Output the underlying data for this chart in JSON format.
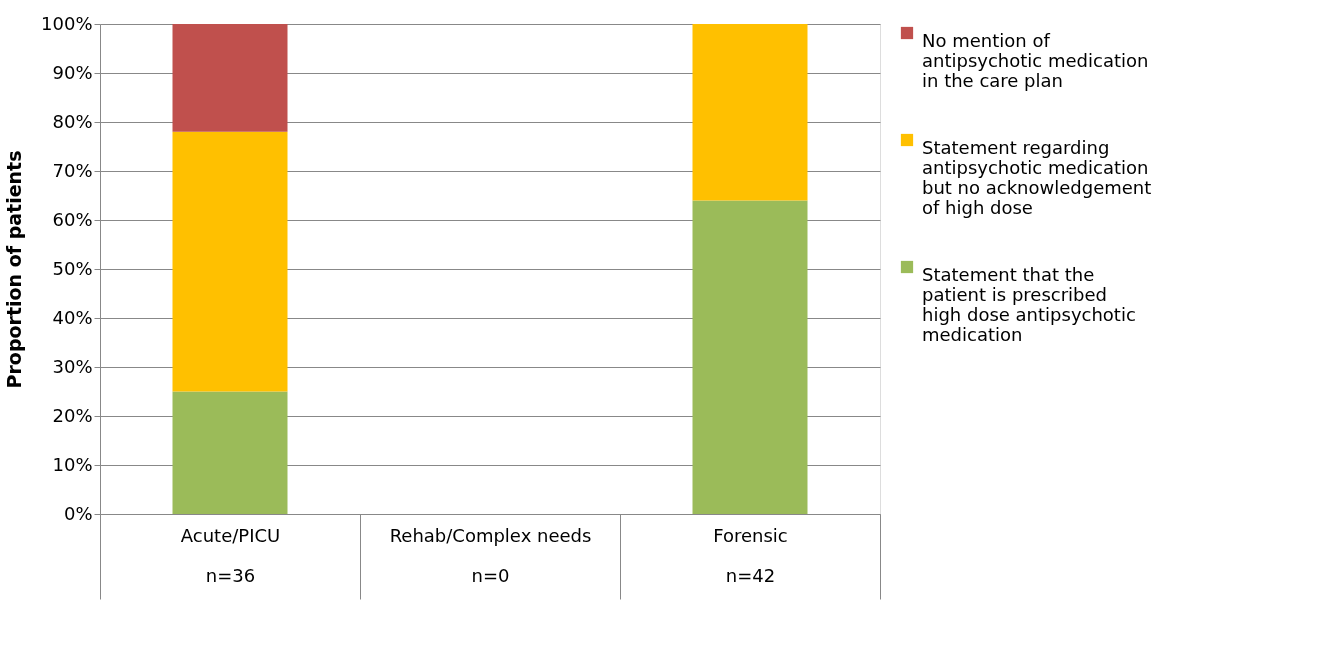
{
  "chart_data": {
    "type": "bar",
    "stacked": true,
    "ylabel": "Proportion of patients",
    "categories": [
      "Acute/PICU\nn=36",
      "Rehab/Complex needs\nn=0",
      "Forensic\nn=42"
    ],
    "series": [
      {
        "name": "Statement that the patient is prescribed high dose antipsychotic medication",
        "color": "#9bbb59",
        "values": [
          25,
          0,
          64
        ]
      },
      {
        "name": "Statement regarding antipsychotic medication but no acknowledgement of high dose",
        "color": "#ffc000",
        "values": [
          53,
          0,
          36
        ]
      },
      {
        "name": "No mention of antipsychotic medication in the care plan",
        "color": "#c0504d",
        "values": [
          22,
          0,
          0
        ]
      }
    ],
    "ylim": [
      0,
      100
    ],
    "yticks": [
      {
        "value": 0,
        "label": "0%"
      },
      {
        "value": 10,
        "label": "10%"
      },
      {
        "value": 20,
        "label": "20%"
      },
      {
        "value": 30,
        "label": "30%"
      },
      {
        "value": 40,
        "label": "40%"
      },
      {
        "value": 50,
        "label": "50%"
      },
      {
        "value": 60,
        "label": "60%"
      },
      {
        "value": 70,
        "label": "70%"
      },
      {
        "value": 80,
        "label": "80%"
      },
      {
        "value": 90,
        "label": "90%"
      },
      {
        "value": 100,
        "label": "100%"
      }
    ],
    "grid": "y",
    "legend": "right"
  }
}
